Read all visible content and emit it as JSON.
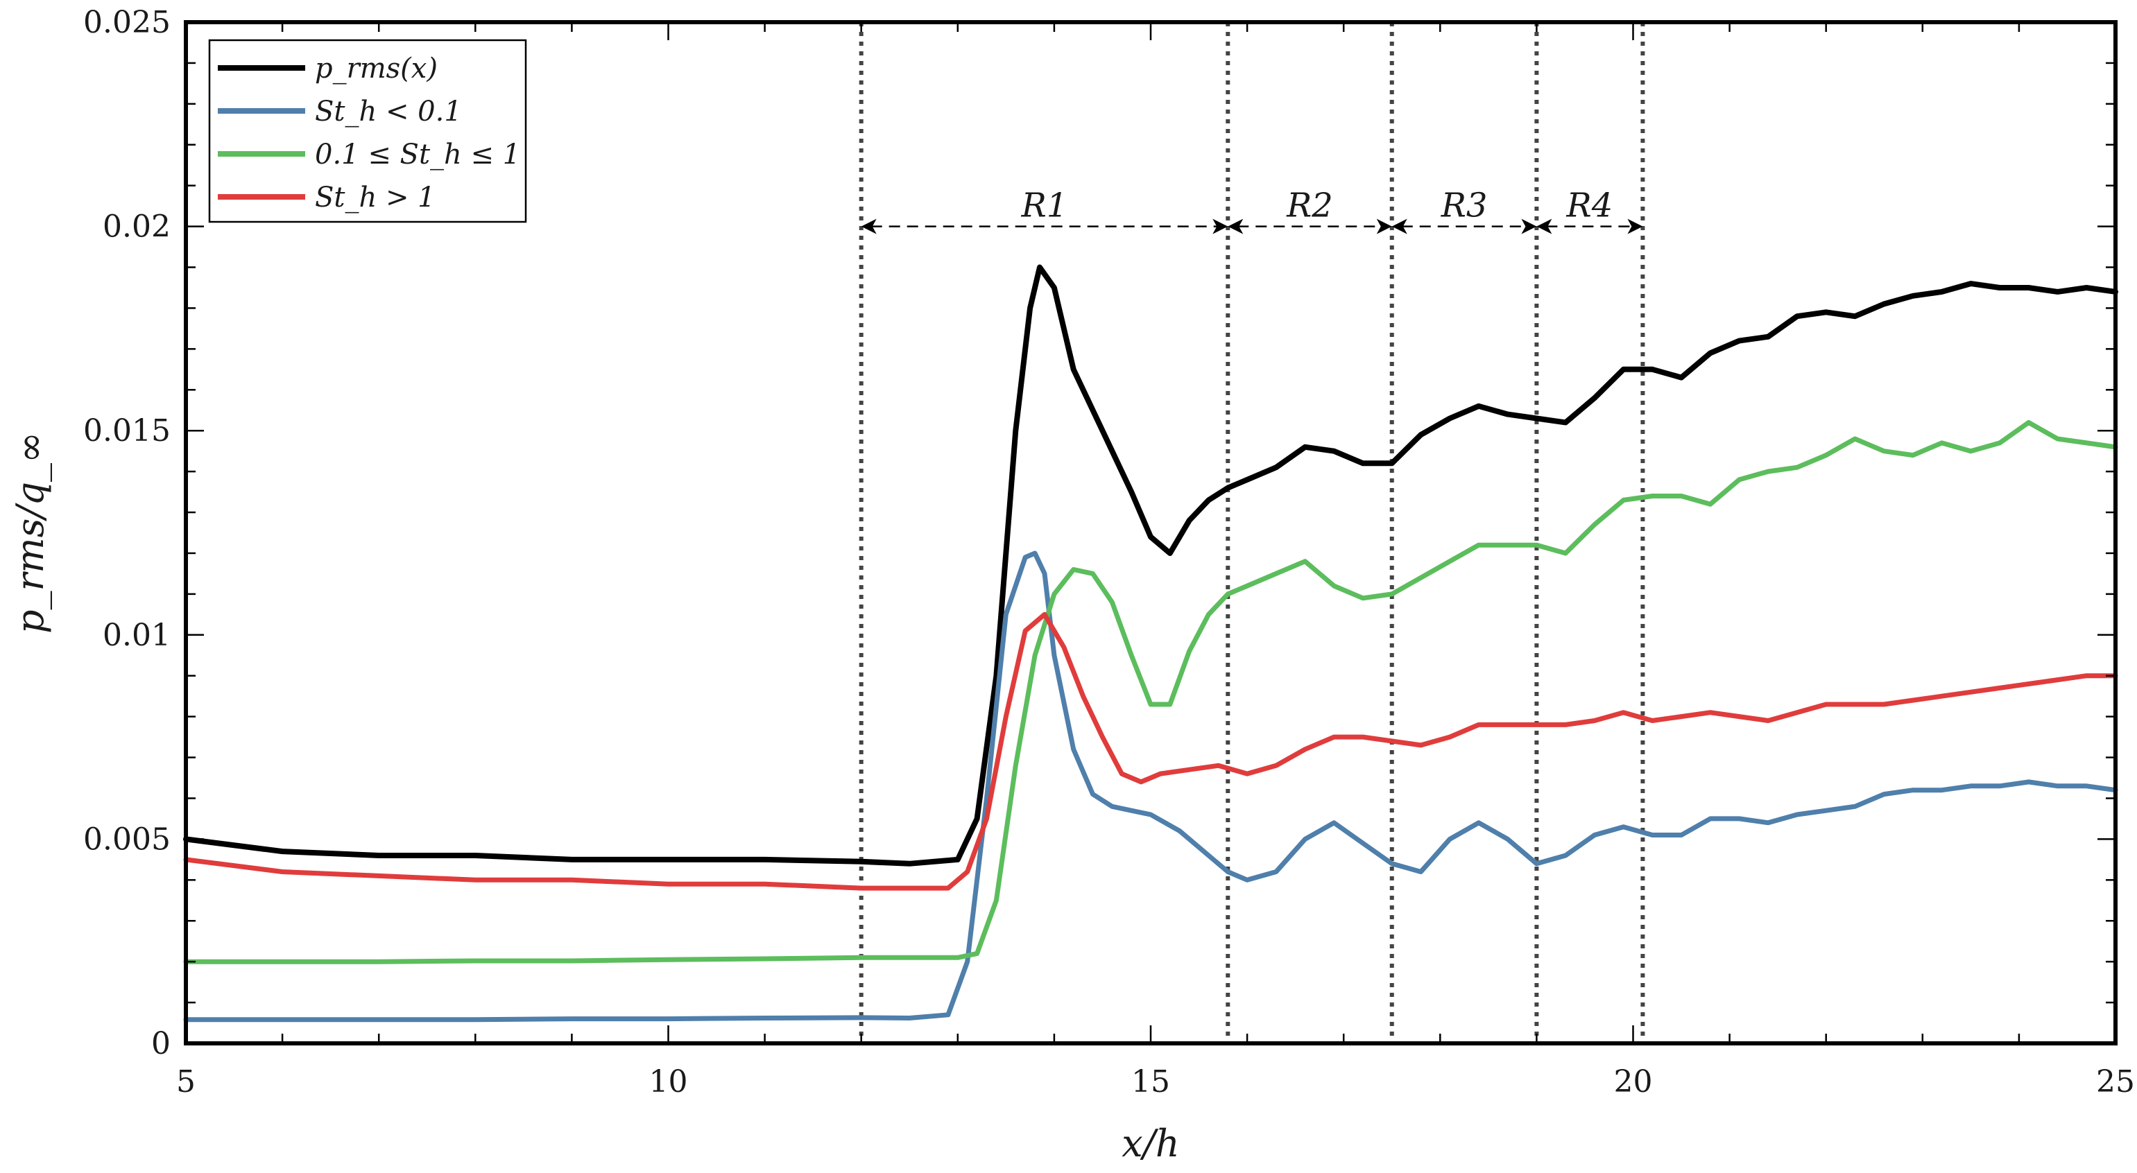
{
  "chart_data": {
    "type": "line",
    "title": "",
    "xlabel": "x/h",
    "ylabel": "p_rms/q_∞",
    "xlim": [
      5,
      25
    ],
    "ylim": [
      0,
      0.025
    ],
    "xticks": [
      5,
      10,
      15,
      20,
      25
    ],
    "yticks": [
      0,
      0.005,
      0.01,
      0.015,
      0.02,
      0.025
    ],
    "xtick_labels": [
      "5",
      "10",
      "15",
      "20",
      "25"
    ],
    "ytick_labels": [
      "0",
      "0.005",
      "0.01",
      "0.015",
      "0.02",
      "0.025"
    ],
    "grid": false,
    "legend_position": "top-left",
    "region_bounds": [
      12.0,
      15.8,
      17.5,
      19.0,
      20.1
    ],
    "regions": [
      {
        "label": "R1",
        "from": 12.0,
        "to": 15.8
      },
      {
        "label": "R2",
        "from": 15.8,
        "to": 17.5
      },
      {
        "label": "R3",
        "from": 17.5,
        "to": 19.0
      },
      {
        "label": "R4",
        "from": 19.0,
        "to": 20.1
      }
    ],
    "region_arrow_y": 0.02,
    "series": [
      {
        "name": "p_rms(x)",
        "color": "#000000",
        "x": [
          5,
          6,
          7,
          8,
          9,
          10,
          11,
          12,
          12.5,
          13.0,
          13.2,
          13.4,
          13.6,
          13.75,
          13.85,
          14.0,
          14.2,
          14.5,
          14.8,
          15.0,
          15.2,
          15.4,
          15.6,
          15.8,
          16.0,
          16.3,
          16.6,
          16.9,
          17.2,
          17.5,
          17.8,
          18.1,
          18.4,
          18.7,
          19.0,
          19.3,
          19.6,
          19.9,
          20.2,
          20.5,
          20.8,
          21.1,
          21.4,
          21.7,
          22.0,
          22.3,
          22.6,
          22.9,
          23.2,
          23.5,
          23.8,
          24.1,
          24.4,
          24.7,
          25.0
        ],
        "y": [
          0.005,
          0.0047,
          0.0046,
          0.0046,
          0.0045,
          0.0045,
          0.0045,
          0.00445,
          0.0044,
          0.0045,
          0.0055,
          0.009,
          0.015,
          0.018,
          0.019,
          0.0185,
          0.0165,
          0.015,
          0.0135,
          0.0124,
          0.012,
          0.0128,
          0.0133,
          0.0136,
          0.0138,
          0.0141,
          0.0146,
          0.0145,
          0.0142,
          0.0142,
          0.0149,
          0.0153,
          0.0156,
          0.0154,
          0.0153,
          0.0152,
          0.0158,
          0.0165,
          0.0165,
          0.0163,
          0.0169,
          0.0172,
          0.0173,
          0.0178,
          0.0179,
          0.0178,
          0.0181,
          0.0183,
          0.0184,
          0.0186,
          0.0185,
          0.0185,
          0.0184,
          0.0185,
          0.0184
        ]
      },
      {
        "name": "St_h < 0.1",
        "color": "#4f7fab",
        "x": [
          5,
          6,
          7,
          8,
          9,
          10,
          11,
          12,
          12.5,
          12.9,
          13.1,
          13.3,
          13.5,
          13.7,
          13.8,
          13.9,
          14.0,
          14.2,
          14.4,
          14.6,
          14.8,
          15.0,
          15.3,
          15.6,
          15.8,
          16.0,
          16.3,
          16.6,
          16.9,
          17.2,
          17.5,
          17.8,
          18.1,
          18.4,
          18.7,
          19.0,
          19.3,
          19.6,
          19.9,
          20.2,
          20.5,
          20.8,
          21.1,
          21.4,
          21.7,
          22.0,
          22.3,
          22.6,
          22.9,
          23.2,
          23.5,
          23.8,
          24.1,
          24.4,
          24.7,
          25.0
        ],
        "y": [
          0.00058,
          0.00058,
          0.00058,
          0.00058,
          0.0006,
          0.0006,
          0.00062,
          0.00063,
          0.00062,
          0.0007,
          0.002,
          0.006,
          0.0105,
          0.0119,
          0.012,
          0.0115,
          0.0095,
          0.0072,
          0.0061,
          0.0058,
          0.0057,
          0.0056,
          0.0052,
          0.0046,
          0.0042,
          0.004,
          0.0042,
          0.005,
          0.0054,
          0.0049,
          0.0044,
          0.0042,
          0.005,
          0.0054,
          0.005,
          0.0044,
          0.0046,
          0.0051,
          0.0053,
          0.0051,
          0.0051,
          0.0055,
          0.0055,
          0.0054,
          0.0056,
          0.0057,
          0.0058,
          0.0061,
          0.0062,
          0.0062,
          0.0063,
          0.0063,
          0.0064,
          0.0063,
          0.0063,
          0.0062
        ]
      },
      {
        "name": "0.1 ≤ St_h ≤ 1",
        "color": "#5cbd5c",
        "x": [
          5,
          6,
          7,
          8,
          9,
          10,
          11,
          12,
          12.5,
          13.0,
          13.2,
          13.4,
          13.6,
          13.8,
          14.0,
          14.2,
          14.4,
          14.6,
          14.8,
          15.0,
          15.2,
          15.4,
          15.6,
          15.8,
          16.0,
          16.3,
          16.6,
          16.9,
          17.2,
          17.5,
          17.8,
          18.1,
          18.4,
          18.7,
          19.0,
          19.3,
          19.6,
          19.9,
          20.2,
          20.5,
          20.8,
          21.1,
          21.4,
          21.7,
          22.0,
          22.3,
          22.6,
          22.9,
          23.2,
          23.5,
          23.8,
          24.1,
          24.4,
          24.7,
          25.0
        ],
        "y": [
          0.002,
          0.002,
          0.002,
          0.00202,
          0.00202,
          0.00205,
          0.00207,
          0.0021,
          0.0021,
          0.0021,
          0.0022,
          0.0035,
          0.0068,
          0.0095,
          0.011,
          0.0116,
          0.0115,
          0.0108,
          0.0095,
          0.0083,
          0.0083,
          0.0096,
          0.0105,
          0.011,
          0.0112,
          0.0115,
          0.0118,
          0.0112,
          0.0109,
          0.011,
          0.0114,
          0.0118,
          0.0122,
          0.0122,
          0.0122,
          0.012,
          0.0127,
          0.0133,
          0.0134,
          0.0134,
          0.0132,
          0.0138,
          0.014,
          0.0141,
          0.0144,
          0.0148,
          0.0145,
          0.0144,
          0.0147,
          0.0145,
          0.0147,
          0.0152,
          0.0148,
          0.0147,
          0.0146
        ]
      },
      {
        "name": "St_h > 1",
        "color": "#e03c3c",
        "x": [
          5,
          6,
          7,
          8,
          9,
          10,
          11,
          12,
          12.5,
          12.9,
          13.1,
          13.3,
          13.5,
          13.7,
          13.9,
          14.1,
          14.3,
          14.5,
          14.7,
          14.9,
          15.1,
          15.4,
          15.7,
          16.0,
          16.3,
          16.6,
          16.9,
          17.2,
          17.5,
          17.8,
          18.1,
          18.4,
          18.7,
          19.0,
          19.3,
          19.6,
          19.9,
          20.2,
          20.5,
          20.8,
          21.1,
          21.4,
          21.7,
          22.0,
          22.3,
          22.6,
          22.9,
          23.2,
          23.5,
          23.8,
          24.1,
          24.4,
          24.7,
          25.0
        ],
        "y": [
          0.0045,
          0.0042,
          0.0041,
          0.004,
          0.004,
          0.0039,
          0.0039,
          0.0038,
          0.0038,
          0.0038,
          0.0042,
          0.0055,
          0.008,
          0.0101,
          0.0105,
          0.0097,
          0.0085,
          0.0075,
          0.0066,
          0.0064,
          0.0066,
          0.0067,
          0.0068,
          0.0066,
          0.0068,
          0.0072,
          0.0075,
          0.0075,
          0.0074,
          0.0073,
          0.0075,
          0.0078,
          0.0078,
          0.0078,
          0.0078,
          0.0079,
          0.0081,
          0.0079,
          0.008,
          0.0081,
          0.008,
          0.0079,
          0.0081,
          0.0083,
          0.0083,
          0.0083,
          0.0084,
          0.0085,
          0.0086,
          0.0087,
          0.0088,
          0.0089,
          0.009,
          0.009
        ]
      }
    ]
  }
}
